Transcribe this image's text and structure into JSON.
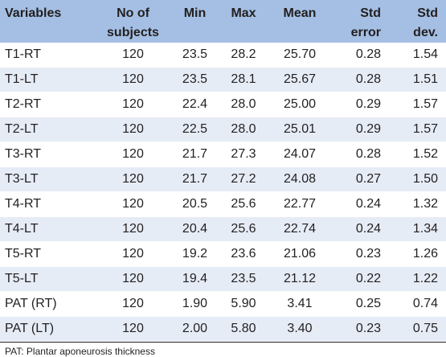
{
  "table": {
    "headers": {
      "variables": "Variables",
      "subjects_line1": "No of",
      "subjects_line2": "subjects",
      "min": "Min",
      "max": "Max",
      "mean": "Mean",
      "stderr_line1": "Std",
      "stderr_line2": "error",
      "stddev_line1": "Std",
      "stddev_line2": "dev."
    },
    "rows": [
      {
        "variable": "T1-RT",
        "n": "120",
        "min": "23.5",
        "max": "28.2",
        "mean": "25.70",
        "stderr": "0.28",
        "stddev": "1.54"
      },
      {
        "variable": "T1-LT",
        "n": "120",
        "min": "23.5",
        "max": "28.1",
        "mean": "25.67",
        "stderr": "0.28",
        "stddev": "1.51"
      },
      {
        "variable": "T2-RT",
        "n": "120",
        "min": "22.4",
        "max": "28.0",
        "mean": "25.00",
        "stderr": "0.29",
        "stddev": "1.57"
      },
      {
        "variable": "T2-LT",
        "n": "120",
        "min": "22.5",
        "max": "28.0",
        "mean": "25.01",
        "stderr": "0.29",
        "stddev": "1.57"
      },
      {
        "variable": "T3-RT",
        "n": "120",
        "min": "21.7",
        "max": "27.3",
        "mean": "24.07",
        "stderr": "0.28",
        "stddev": "1.52"
      },
      {
        "variable": "T3-LT",
        "n": "120",
        "min": "21.7",
        "max": "27.2",
        "mean": "24.08",
        "stderr": "0.27",
        "stddev": "1.50"
      },
      {
        "variable": "T4-RT",
        "n": "120",
        "min": "20.5",
        "max": "25.6",
        "mean": "22.77",
        "stderr": "0.24",
        "stddev": "1.32"
      },
      {
        "variable": "T4-LT",
        "n": "120",
        "min": "20.4",
        "max": "25.6",
        "mean": "22.74",
        "stderr": "0.24",
        "stddev": "1.34"
      },
      {
        "variable": "T5-RT",
        "n": "120",
        "min": "19.2",
        "max": "23.6",
        "mean": "21.06",
        "stderr": "0.23",
        "stddev": "1.26"
      },
      {
        "variable": "T5-LT",
        "n": "120",
        "min": "19.4",
        "max": "23.5",
        "mean": "21.12",
        "stderr": "0.22",
        "stddev": "1.22"
      },
      {
        "variable": "PAT (RT)",
        "n": "120",
        "min": "1.90",
        "max": "5.90",
        "mean": "3.41",
        "stderr": "0.25",
        "stddev": "0.74"
      },
      {
        "variable": "PAT (LT)",
        "n": "120",
        "min": "2.00",
        "max": "5.80",
        "mean": "3.40",
        "stderr": "0.23",
        "stddev": "0.75"
      }
    ],
    "footnote": "PAT: Plantar aponeurosis thickness"
  },
  "colors": {
    "header_bg": "#a4bfe3",
    "alt_row_bg": "#e6ecf6",
    "text": "#231f20"
  }
}
